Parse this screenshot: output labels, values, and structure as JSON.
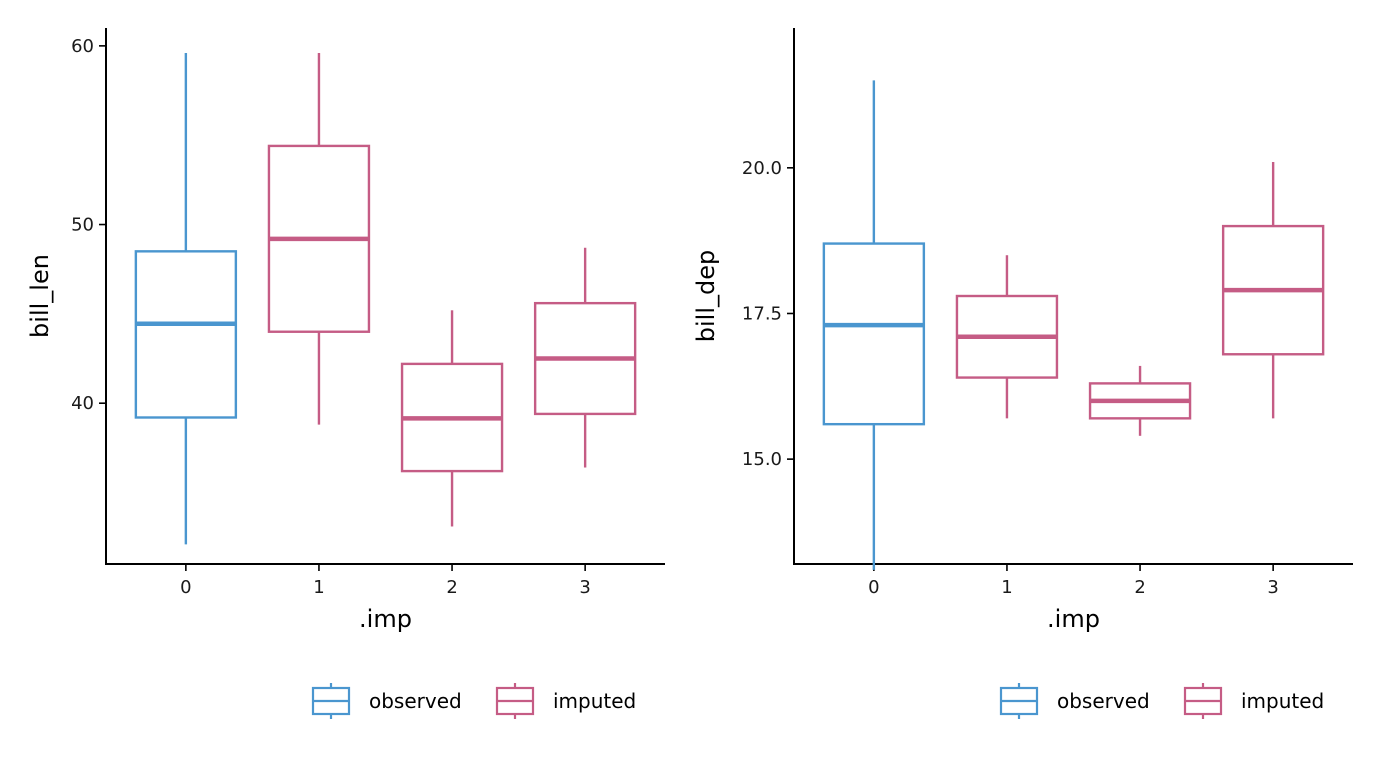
{
  "colors": {
    "observed": "#4a96cf",
    "imputed": "#c55c85",
    "axis": "#000000"
  },
  "legend": {
    "observed_label": "observed",
    "imputed_label": "imputed"
  },
  "chart_data": [
    {
      "type": "box",
      "xlabel": ".imp",
      "ylabel": "bill_len",
      "ylim": [
        31,
        61
      ],
      "yticks": [
        40,
        50,
        60
      ],
      "ytick_labels": [
        "40",
        "50",
        "60"
      ],
      "categories": [
        "0",
        "1",
        "2",
        "3"
      ],
      "boxes": [
        {
          "category": "0",
          "group": "observed",
          "min": 32.1,
          "q1": 39.2,
          "median": 44.45,
          "q3": 48.5,
          "max": 59.6
        },
        {
          "category": "1",
          "group": "imputed",
          "min": 38.8,
          "q1": 44.0,
          "median": 49.2,
          "q3": 54.4,
          "max": 59.6
        },
        {
          "category": "2",
          "group": "imputed",
          "min": 33.1,
          "q1": 36.2,
          "median": 39.15,
          "q3": 42.2,
          "max": 45.2
        },
        {
          "category": "3",
          "group": "imputed",
          "min": 36.4,
          "q1": 39.4,
          "median": 42.5,
          "q3": 45.6,
          "max": 48.7
        }
      ]
    },
    {
      "type": "box",
      "xlabel": ".imp",
      "ylabel": "bill_dep",
      "ylim": [
        13.2,
        22.4
      ],
      "yticks": [
        15.0,
        17.5,
        20.0
      ],
      "ytick_labels": [
        "15.0",
        "17.5",
        "20.0"
      ],
      "categories": [
        "0",
        "1",
        "2",
        "3"
      ],
      "boxes": [
        {
          "category": "0",
          "group": "observed",
          "min": 13.1,
          "q1": 15.6,
          "median": 17.3,
          "q3": 18.7,
          "max": 21.5
        },
        {
          "category": "1",
          "group": "imputed",
          "min": 15.7,
          "q1": 16.4,
          "median": 17.1,
          "q3": 17.8,
          "max": 18.5
        },
        {
          "category": "2",
          "group": "imputed",
          "min": 15.4,
          "q1": 15.7,
          "median": 16.0,
          "q3": 16.3,
          "max": 16.6
        },
        {
          "category": "3",
          "group": "imputed",
          "min": 15.7,
          "q1": 16.8,
          "median": 17.9,
          "q3": 19.0,
          "max": 20.1
        }
      ]
    }
  ]
}
